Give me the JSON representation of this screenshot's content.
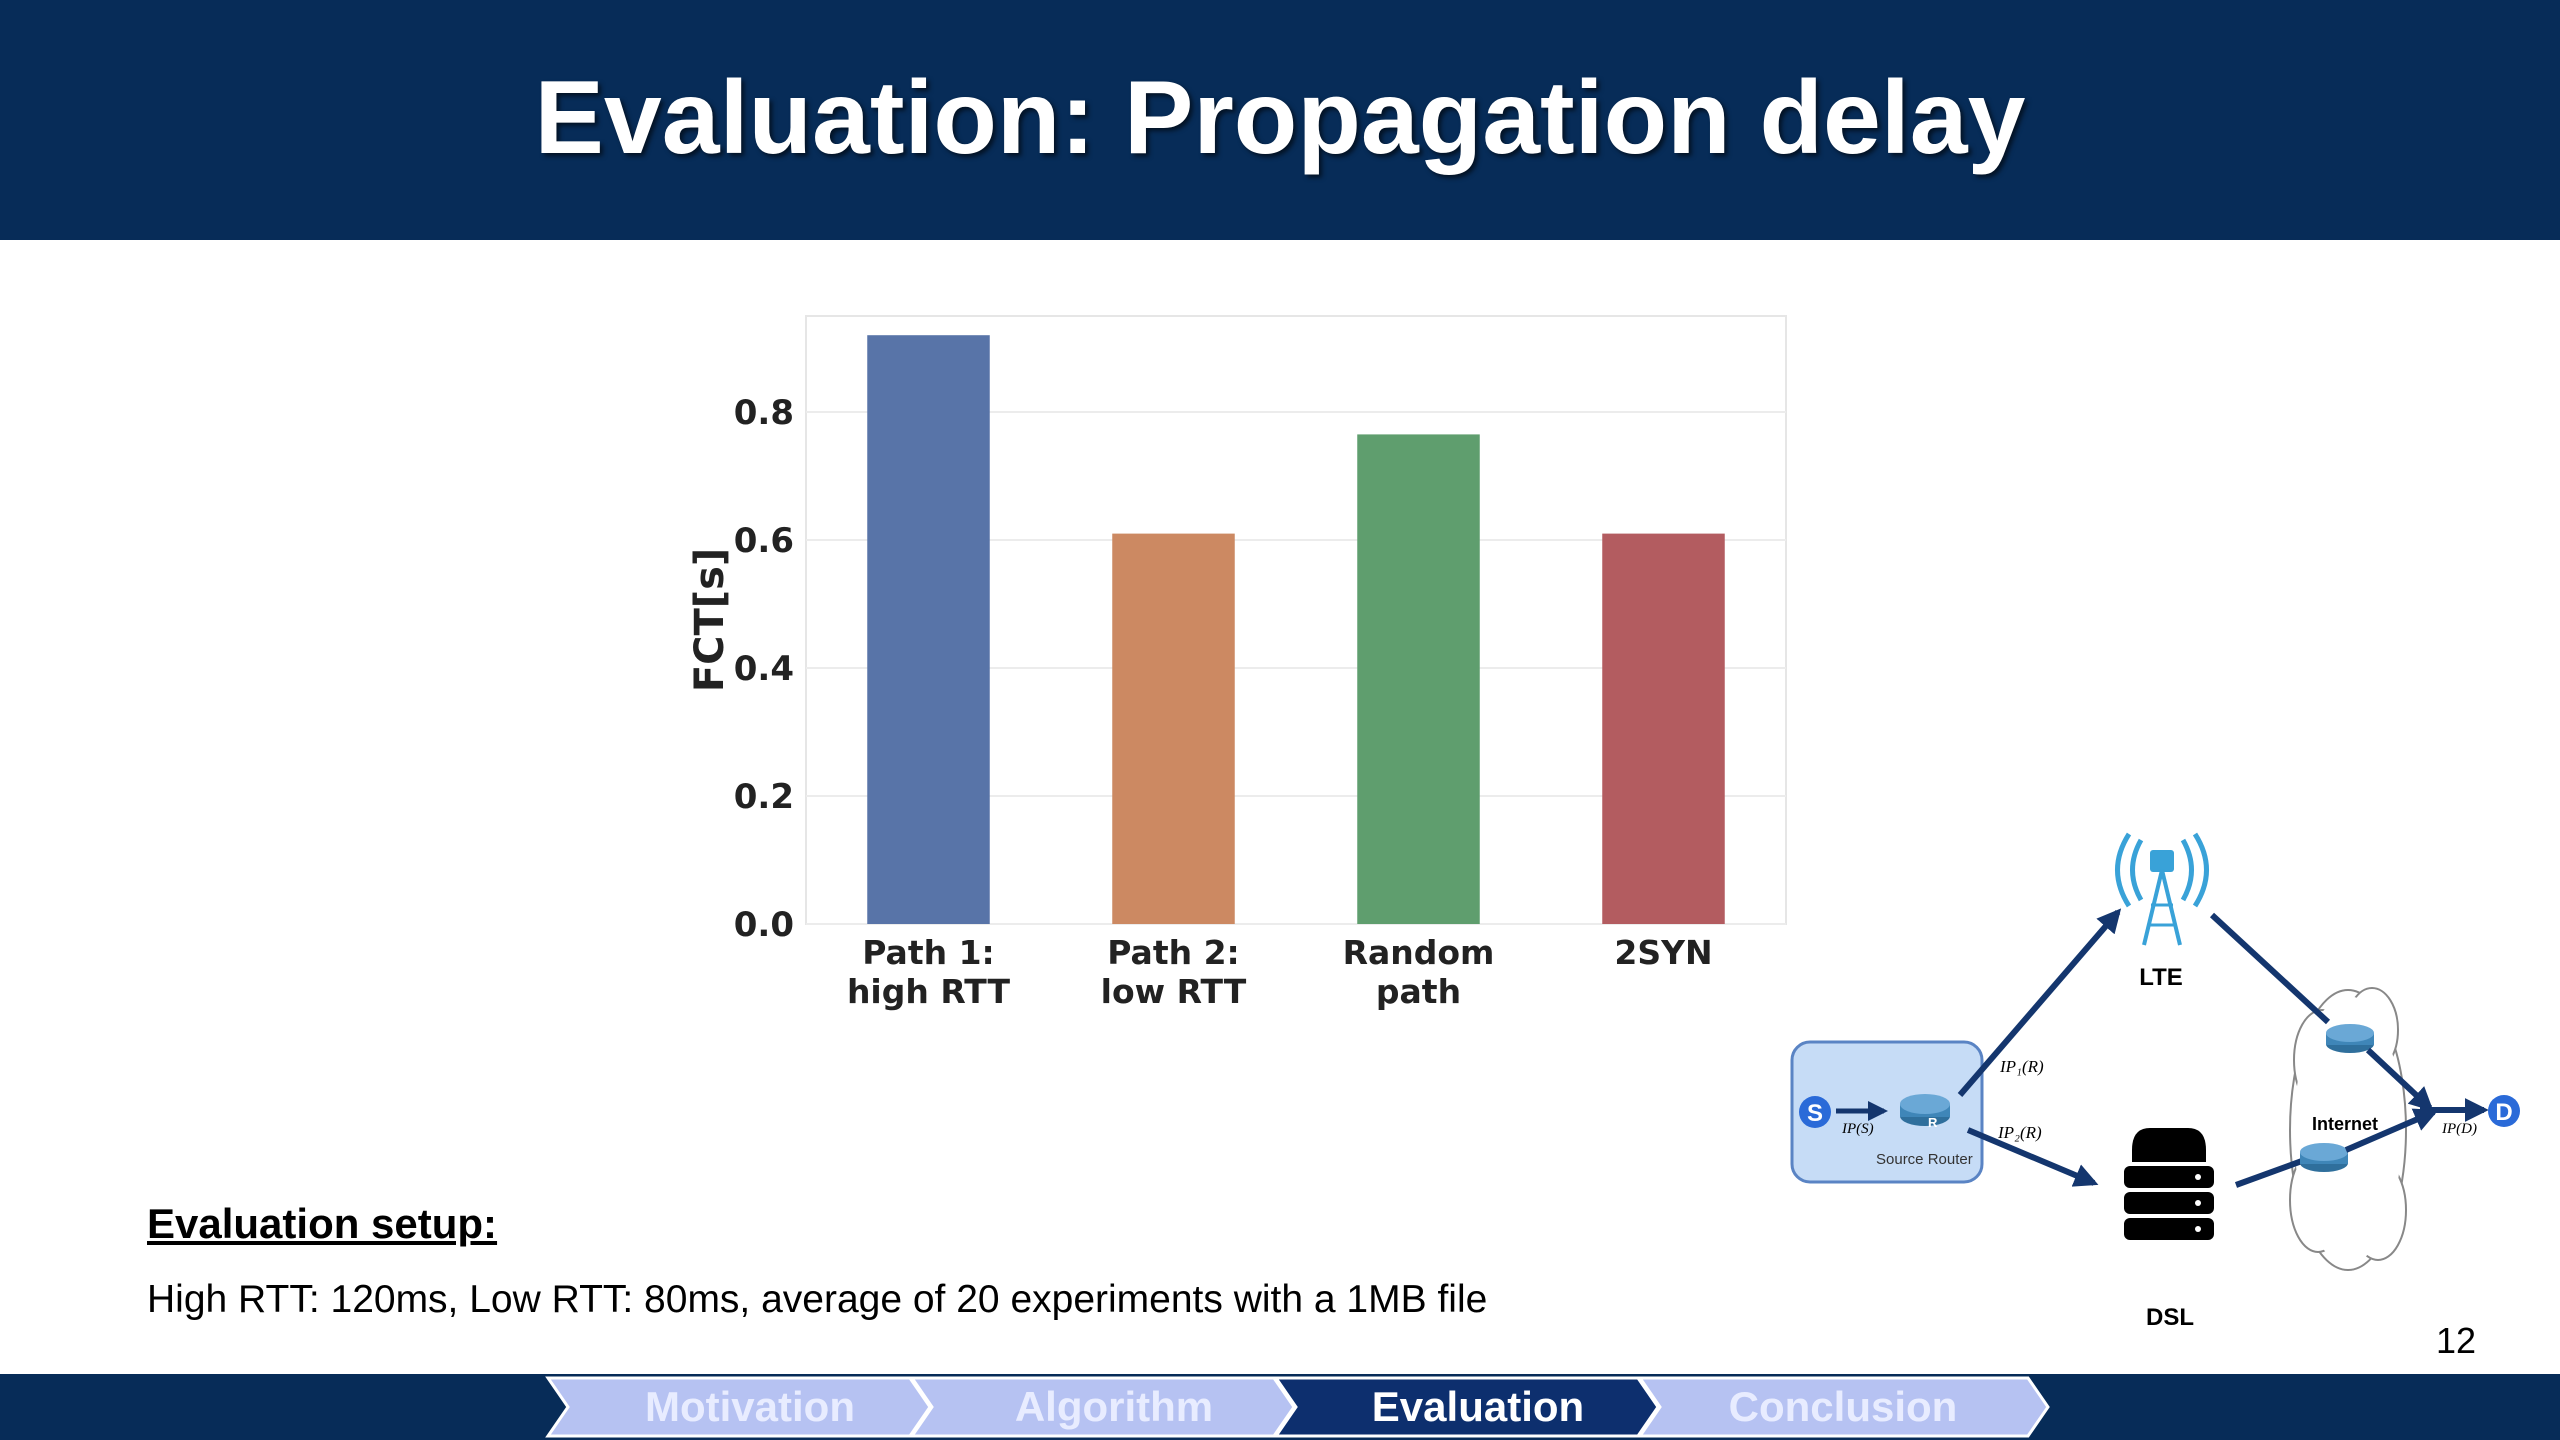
{
  "slide": {
    "title": "Evaluation: Propagation delay",
    "page_number": "12"
  },
  "colors": {
    "header_background": "#072c58",
    "nav_inactive": "#b6c2f2",
    "nav_active": "#0d2f6e"
  },
  "chart_data": {
    "type": "bar",
    "categories": [
      [
        "Path 1:",
        "high RTT"
      ],
      [
        "Path 2:",
        "low RTT"
      ],
      [
        "Random",
        "path"
      ],
      [
        "2SYN"
      ]
    ],
    "values": [
      0.92,
      0.61,
      0.765,
      0.61
    ],
    "colors": [
      "#5874a8",
      "#cc8962",
      "#5f9e6e",
      "#b35c60"
    ],
    "ylabel": "FCT[s]",
    "xlabel": "",
    "ylim": [
      0,
      0.95
    ],
    "yticks": [
      0.0,
      0.2,
      0.4,
      0.6,
      0.8
    ],
    "ytick_labels": [
      "0.0",
      "0.2",
      "0.4",
      "0.6",
      "0.8"
    ],
    "grid": true
  },
  "diagram": {
    "source_label": "S",
    "router_label": "R",
    "source_router_caption": "Source Router",
    "ip_s": "IP(S)",
    "ip1_r": "IP₁(R)",
    "ip2_r": "IP₂(R)",
    "lte_label": "LTE",
    "dsl_label": "DSL",
    "internet_label": "Internet",
    "ip_d": "IP(D)",
    "destination_label": "D",
    "icons": [
      "cell-tower-icon",
      "server-icon",
      "router-icon",
      "cloud-icon"
    ]
  },
  "setup": {
    "heading": "Evaluation setup:",
    "text": "High RTT: 120ms, Low RTT: 80ms,  average of 20 experiments with a 1MB file"
  },
  "nav": {
    "items": [
      {
        "label": "Motivation",
        "active": false
      },
      {
        "label": "Algorithm",
        "active": false
      },
      {
        "label": "Evaluation",
        "active": true
      },
      {
        "label": "Conclusion",
        "active": false
      }
    ]
  }
}
